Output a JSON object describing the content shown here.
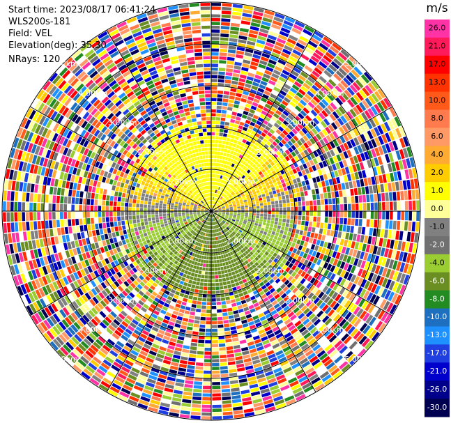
{
  "info": {
    "start_time": "Start time: 2023/08/17 06:41:24",
    "instrument": "WLS200s-181",
    "field": "Field: VEL",
    "elevation": "Elevation(deg): 35.30",
    "nrays": "NRays: 120"
  },
  "colorbar": {
    "unit": "m/s",
    "ticks": [
      "26.0",
      "21.0",
      "17.0",
      "13.0",
      "10.0",
      "8.0",
      "6.0",
      "4.0",
      "2.0",
      "1.0",
      "0.0",
      "-1.0",
      "-2.0",
      "-4.0",
      "-6.0",
      "-8.0",
      "-10.0",
      "-13.0",
      "-17.0",
      "-21.0",
      "-26.0",
      "-30.0"
    ],
    "colors": [
      "#ff33a6",
      "#ff1a5c",
      "#ff0000",
      "#ff3300",
      "#ff5a1a",
      "#ff7a4d",
      "#ff9966",
      "#ffaa33",
      "#ffcc00",
      "#ffff00",
      "#ffff99",
      "#808080",
      "#707070",
      "#9acd32",
      "#6b8e23",
      "#228b22",
      "#1e6fbf",
      "#1e90ff",
      "#1f3fe0",
      "#0000cd",
      "#00008b",
      "#000050"
    ]
  },
  "chart_data": {
    "type": "ppi",
    "field": "VEL",
    "units": "m/s",
    "n_rays": 120,
    "elevation_deg": 35.3,
    "color_range": [
      -30.0,
      26.0
    ],
    "range_ring_labels": [
      "1.00km",
      "2.00km",
      "3.00km",
      "4.00km",
      "5.00km"
    ],
    "range_ring_angles_deg": [
      45,
      135,
      225,
      315
    ]
  }
}
